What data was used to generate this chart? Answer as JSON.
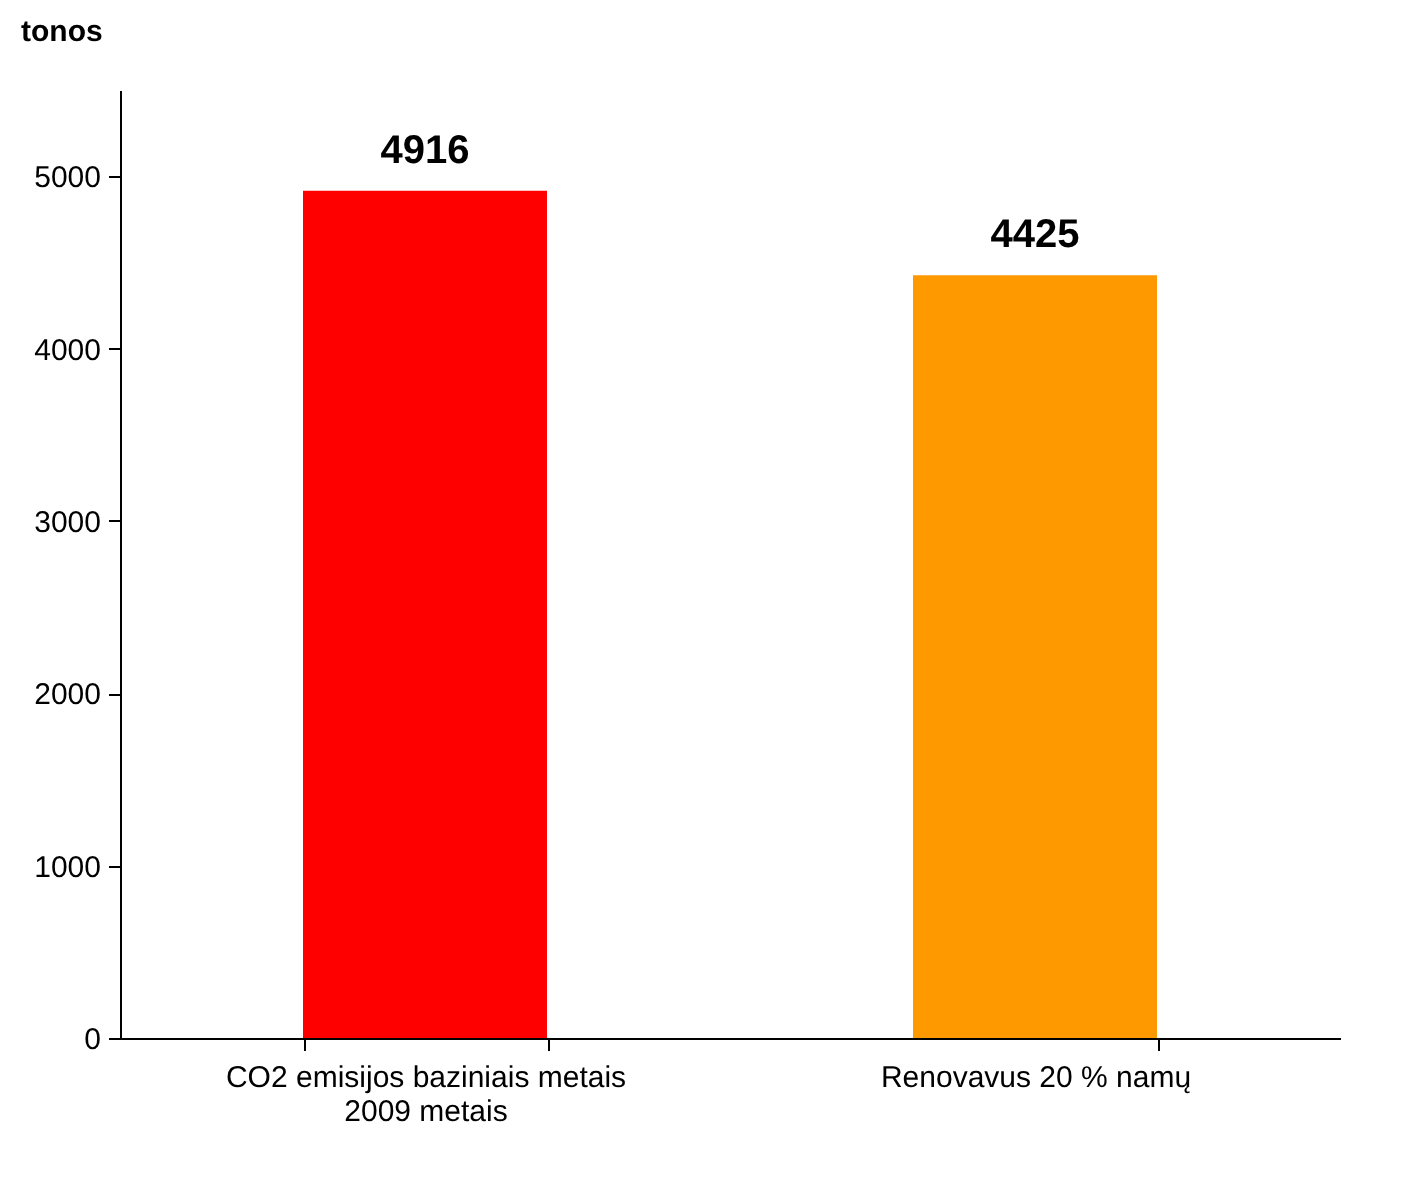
{
  "chart_data": {
    "type": "bar",
    "ylabel": "tonos",
    "categories": [
      "CO2 emisijos baziniais metais 2009 metais",
      "Renovavus 20 % namų"
    ],
    "values": [
      4916,
      4425
    ],
    "colors": [
      "#ff0000",
      "#ff9900"
    ],
    "ylim": [
      0,
      5500
    ],
    "yticks": [
      0,
      1000,
      2000,
      3000,
      4000,
      5000
    ],
    "grid": false,
    "data_labels": true
  }
}
